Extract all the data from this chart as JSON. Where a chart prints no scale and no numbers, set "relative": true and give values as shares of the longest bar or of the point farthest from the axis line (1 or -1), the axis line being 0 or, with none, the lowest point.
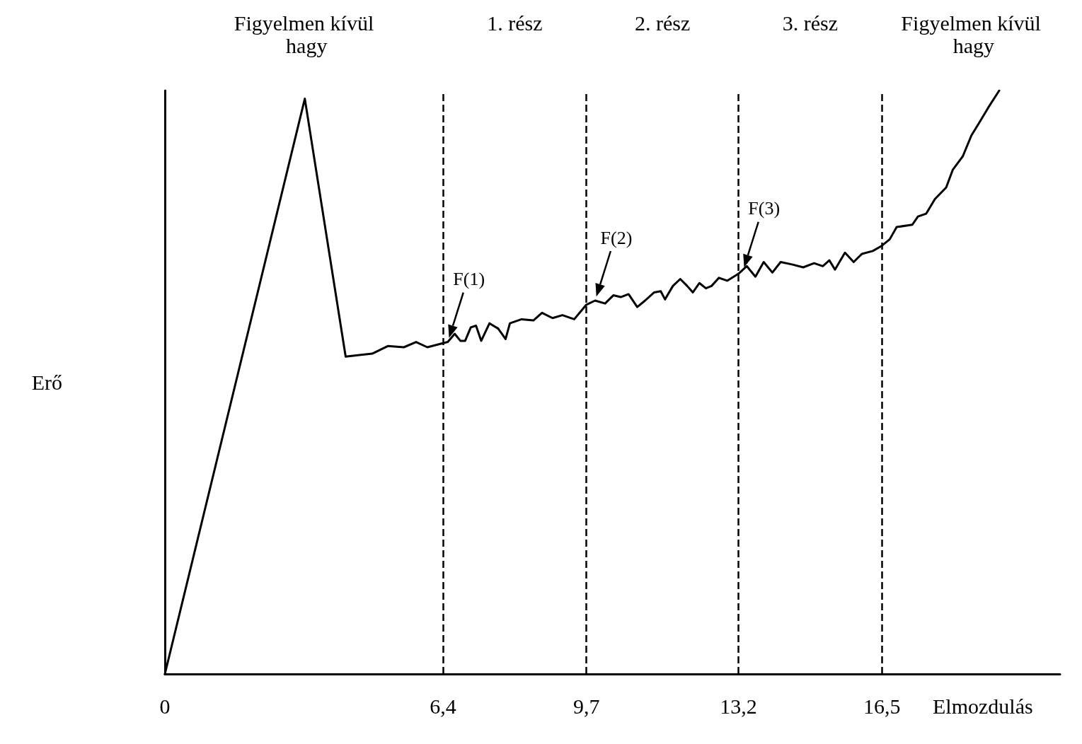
{
  "chart_data": {
    "type": "line",
    "relative": true,
    "xlabel": "Elmozdulás",
    "ylabel": "Erő",
    "line_style": "solid",
    "marker": "none",
    "xlim": [
      0,
      20.6
    ],
    "xticks": [
      0,
      {
        "value": 6.4,
        "label": "6,4"
      },
      {
        "value": 9.7,
        "label": "9,7"
      },
      {
        "value": 13.2,
        "label": "13,2"
      },
      {
        "value": 16.5,
        "label": "16,5"
      }
    ],
    "series": [
      {
        "color": "#000000",
        "x": [
          0,
          3.22,
          4.16,
          4.77,
          5.13,
          5.5,
          5.78,
          6.04,
          6.4,
          6.51,
          6.67,
          6.8,
          6.91,
          7.04,
          7.16,
          7.28,
          7.47,
          7.67,
          7.84,
          7.94,
          8.21,
          8.48,
          8.68,
          8.92,
          9.15,
          9.42,
          9.7,
          9.9,
          10.13,
          10.32,
          10.49,
          10.67,
          10.87,
          11.05,
          11.26,
          11.41,
          11.51,
          11.69,
          11.86,
          12.02,
          12.15,
          12.3,
          12.45,
          12.58,
          12.75,
          12.94,
          13.2,
          13.39,
          13.59,
          13.78,
          13.98,
          14.17,
          14.43,
          14.69,
          14.94,
          15.14,
          15.29,
          15.42,
          15.65,
          15.85,
          16.04,
          16.29,
          16.5,
          16.68,
          16.84,
          17.2,
          17.33,
          17.52,
          17.72,
          17.98,
          18.13,
          18.36,
          18.56,
          18.75,
          18.95,
          19.2
        ],
        "values": [
          0,
          0.986,
          0.544,
          0.549,
          0.562,
          0.56,
          0.569,
          0.56,
          0.567,
          0.569,
          0.583,
          0.571,
          0.571,
          0.594,
          0.597,
          0.571,
          0.601,
          0.592,
          0.574,
          0.601,
          0.608,
          0.606,
          0.619,
          0.61,
          0.615,
          0.608,
          0.633,
          0.64,
          0.635,
          0.649,
          0.646,
          0.651,
          0.629,
          0.64,
          0.654,
          0.656,
          0.642,
          0.665,
          0.677,
          0.665,
          0.654,
          0.67,
          0.661,
          0.665,
          0.679,
          0.674,
          0.686,
          0.699,
          0.681,
          0.706,
          0.688,
          0.706,
          0.702,
          0.697,
          0.704,
          0.699,
          0.709,
          0.693,
          0.722,
          0.706,
          0.72,
          0.725,
          0.734,
          0.745,
          0.766,
          0.77,
          0.784,
          0.789,
          0.814,
          0.834,
          0.864,
          0.887,
          0.923,
          0.946,
          0.971,
          1
        ]
      }
    ],
    "ref_lines": [
      {
        "axis": "x",
        "value": 6.4,
        "line_style": "dashed"
      },
      {
        "axis": "x",
        "value": 9.7,
        "line_style": "dashed"
      },
      {
        "axis": "x",
        "value": 13.2,
        "line_style": "dashed"
      },
      {
        "axis": "x",
        "value": 16.5,
        "line_style": "dashed"
      }
    ],
    "annotations": [
      "Figyelmen kívül hagy",
      "1. rész",
      "2. rész",
      "3. rész",
      "Figyelmen kívül hagy",
      {
        "text": "F(1)",
        "x": 6.51,
        "y": 0.569
      },
      {
        "text": "F(2)",
        "x": 9.9,
        "y": 0.64
      },
      {
        "text": "F(3)",
        "x": 13.3,
        "y": 0.69
      }
    ]
  }
}
